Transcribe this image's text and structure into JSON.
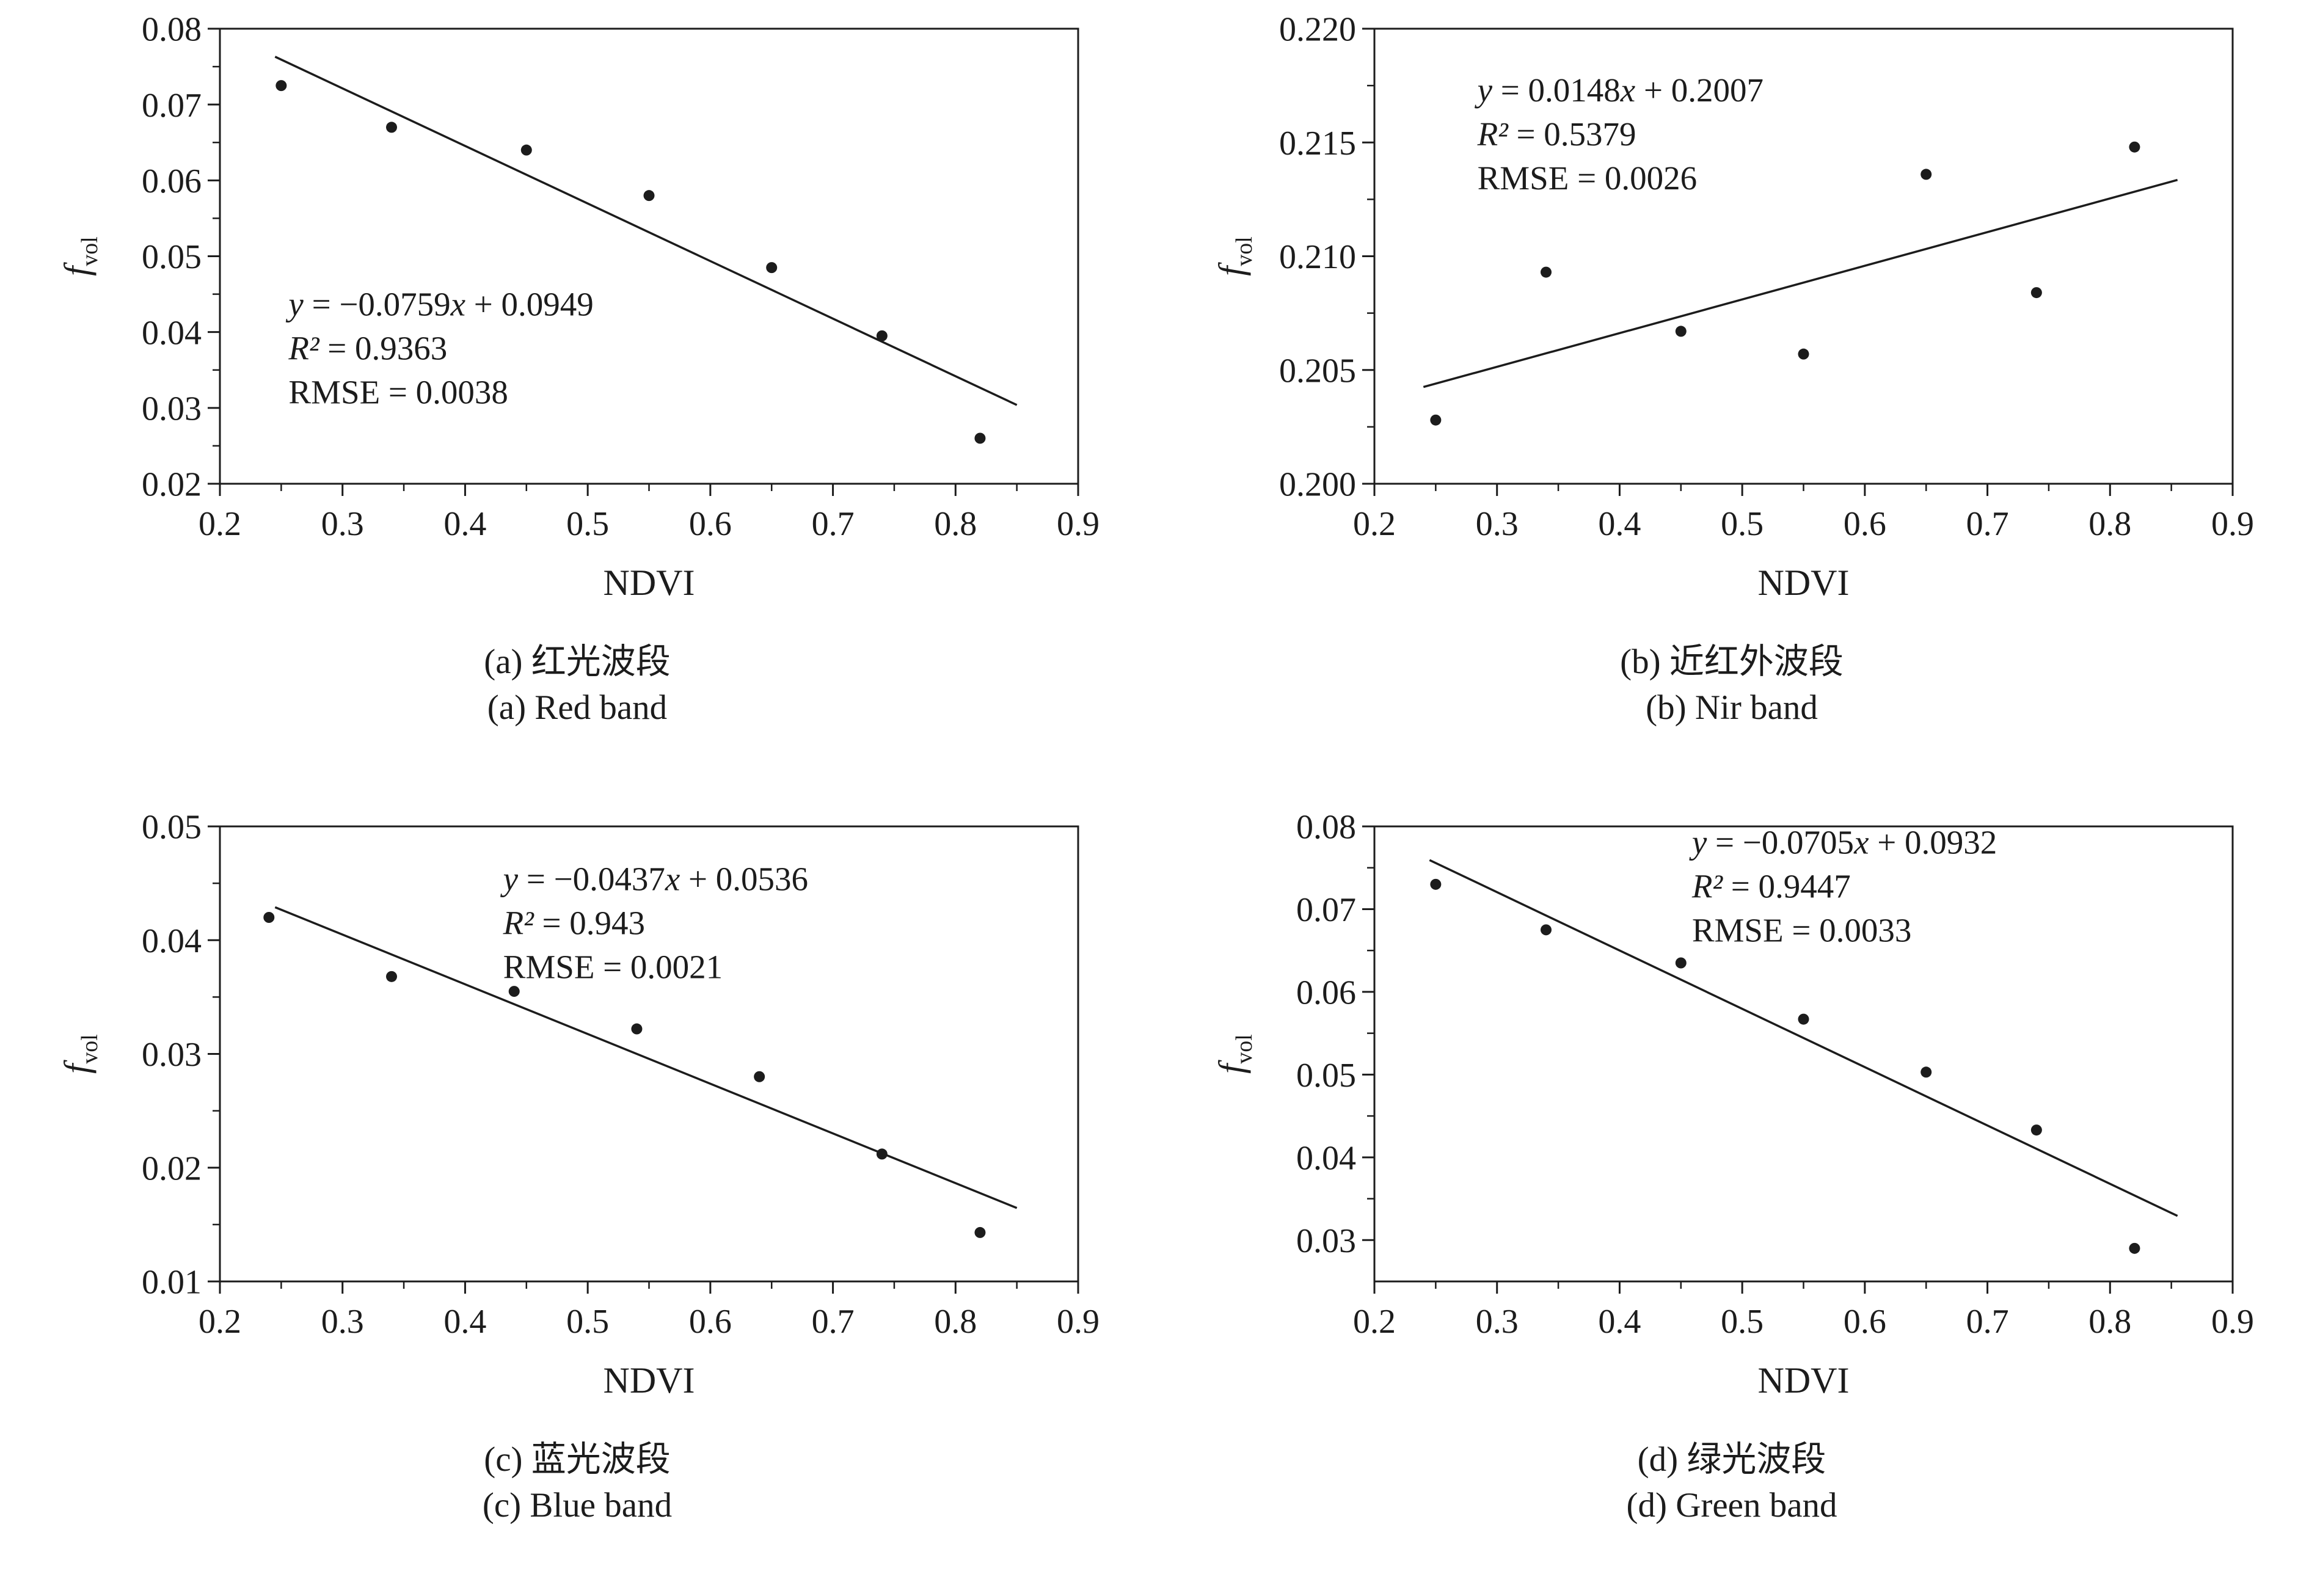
{
  "page": {
    "background": "#ffffff",
    "ink": "#1c1c1c"
  },
  "chart_data": [
    {
      "id": "a",
      "type": "scatter",
      "caption_zh": "(a) 红光波段",
      "caption_en": "(a) Red band",
      "xlabel": "NDVI",
      "ylabel": "f_vol",
      "ylabel_main": "f",
      "ylabel_sub": "vol",
      "xlim": [
        0.2,
        0.9
      ],
      "ylim": [
        0.02,
        0.08
      ],
      "xticks": [
        0.2,
        0.3,
        0.4,
        0.5,
        0.6,
        0.7,
        0.8,
        0.9
      ],
      "xtick_labels": [
        "0.2",
        "0.3",
        "0.4",
        "0.5",
        "0.6",
        "0.7",
        "0.8",
        "0.9"
      ],
      "yticks": [
        0.02,
        0.03,
        0.04,
        0.05,
        0.06,
        0.07,
        0.08
      ],
      "ytick_labels": [
        "0.02",
        "0.03",
        "0.04",
        "0.05",
        "0.06",
        "0.07",
        "0.08"
      ],
      "grid": false,
      "legend": null,
      "points": {
        "x": [
          0.25,
          0.34,
          0.45,
          0.55,
          0.65,
          0.74,
          0.82
        ],
        "y": [
          0.0725,
          0.067,
          0.064,
          0.058,
          0.0485,
          0.0395,
          0.026
        ]
      },
      "fit": {
        "slope": -0.0759,
        "intercept": 0.0949,
        "x_start": 0.245,
        "x_end": 0.85
      },
      "annotation": {
        "lines": [
          "y = −0.0759x + 0.0949",
          "R² = 0.9363",
          "RMSE = 0.0038"
        ],
        "fx": 0.08,
        "fy": 0.63
      }
    },
    {
      "id": "b",
      "type": "scatter",
      "caption_zh": "(b) 近红外波段",
      "caption_en": "(b) Nir band",
      "xlabel": "NDVI",
      "ylabel": "f_vol",
      "ylabel_main": "f",
      "ylabel_sub": "vol",
      "xlim": [
        0.2,
        0.9
      ],
      "ylim": [
        0.2,
        0.22
      ],
      "xticks": [
        0.2,
        0.3,
        0.4,
        0.5,
        0.6,
        0.7,
        0.8,
        0.9
      ],
      "xtick_labels": [
        "0.2",
        "0.3",
        "0.4",
        "0.5",
        "0.6",
        "0.7",
        "0.8",
        "0.9"
      ],
      "yticks": [
        0.2,
        0.205,
        0.21,
        0.215,
        0.22
      ],
      "ytick_labels": [
        "0.200",
        "0.205",
        "0.210",
        "0.215",
        "0.220"
      ],
      "grid": false,
      "legend": null,
      "points": {
        "x": [
          0.25,
          0.34,
          0.45,
          0.55,
          0.65,
          0.74,
          0.82
        ],
        "y": [
          0.2028,
          0.2093,
          0.2067,
          0.2057,
          0.2136,
          0.2084,
          0.2148
        ]
      },
      "fit": {
        "slope": 0.0148,
        "intercept": 0.2007,
        "x_start": 0.24,
        "x_end": 0.855
      },
      "annotation": {
        "lines": [
          "y = 0.0148x + 0.2007",
          "R² = 0.5379",
          "RMSE = 0.0026"
        ],
        "fx": 0.12,
        "fy": 0.16
      }
    },
    {
      "id": "c",
      "type": "scatter",
      "caption_zh": "(c) 蓝光波段",
      "caption_en": "(c) Blue band",
      "xlabel": "NDVI",
      "ylabel": "f_vol",
      "ylabel_main": "f",
      "ylabel_sub": "vol",
      "xlim": [
        0.2,
        0.9
      ],
      "ylim": [
        0.01,
        0.05
      ],
      "xticks": [
        0.2,
        0.3,
        0.4,
        0.5,
        0.6,
        0.7,
        0.8,
        0.9
      ],
      "xtick_labels": [
        "0.2",
        "0.3",
        "0.4",
        "0.5",
        "0.6",
        "0.7",
        "0.8",
        "0.9"
      ],
      "yticks": [
        0.01,
        0.02,
        0.03,
        0.04,
        0.05
      ],
      "ytick_labels": [
        "0.01",
        "0.02",
        "0.03",
        "0.04",
        "0.05"
      ],
      "grid": false,
      "legend": null,
      "points": {
        "x": [
          0.24,
          0.34,
          0.44,
          0.54,
          0.64,
          0.74,
          0.82
        ],
        "y": [
          0.042,
          0.0368,
          0.0355,
          0.0322,
          0.028,
          0.0212,
          0.0143
        ]
      },
      "fit": {
        "slope": -0.0437,
        "intercept": 0.0536,
        "x_start": 0.245,
        "x_end": 0.85
      },
      "annotation": {
        "lines": [
          "y = −0.0437x + 0.0536",
          "R² = 0.943",
          "RMSE = 0.0021"
        ],
        "fx": 0.33,
        "fy": 0.14
      }
    },
    {
      "id": "d",
      "type": "scatter",
      "caption_zh": "(d) 绿光波段",
      "caption_en": "(d) Green band",
      "xlabel": "NDVI",
      "ylabel": "f_vol",
      "ylabel_main": "f",
      "ylabel_sub": "vol",
      "xlim": [
        0.2,
        0.9
      ],
      "ylim": [
        0.025,
        0.08
      ],
      "xticks": [
        0.2,
        0.3,
        0.4,
        0.5,
        0.6,
        0.7,
        0.8,
        0.9
      ],
      "xtick_labels": [
        "0.2",
        "0.3",
        "0.4",
        "0.5",
        "0.6",
        "0.7",
        "0.8",
        "0.9"
      ],
      "yticks": [
        0.03,
        0.04,
        0.05,
        0.06,
        0.07,
        0.08
      ],
      "ytick_labels": [
        "0.03",
        "0.04",
        "0.05",
        "0.06",
        "0.07",
        "0.08"
      ],
      "grid": false,
      "legend": null,
      "points": {
        "x": [
          0.25,
          0.34,
          0.45,
          0.55,
          0.65,
          0.74,
          0.82
        ],
        "y": [
          0.073,
          0.0675,
          0.0635,
          0.0567,
          0.0503,
          0.0433,
          0.029
        ]
      },
      "fit": {
        "slope": -0.0705,
        "intercept": 0.0932,
        "x_start": 0.245,
        "x_end": 0.855
      },
      "annotation": {
        "lines": [
          "y = −0.0705x + 0.0932",
          "R² = 0.9447",
          "RMSE = 0.0033"
        ],
        "fx": 0.37,
        "fy": 0.06
      }
    }
  ]
}
